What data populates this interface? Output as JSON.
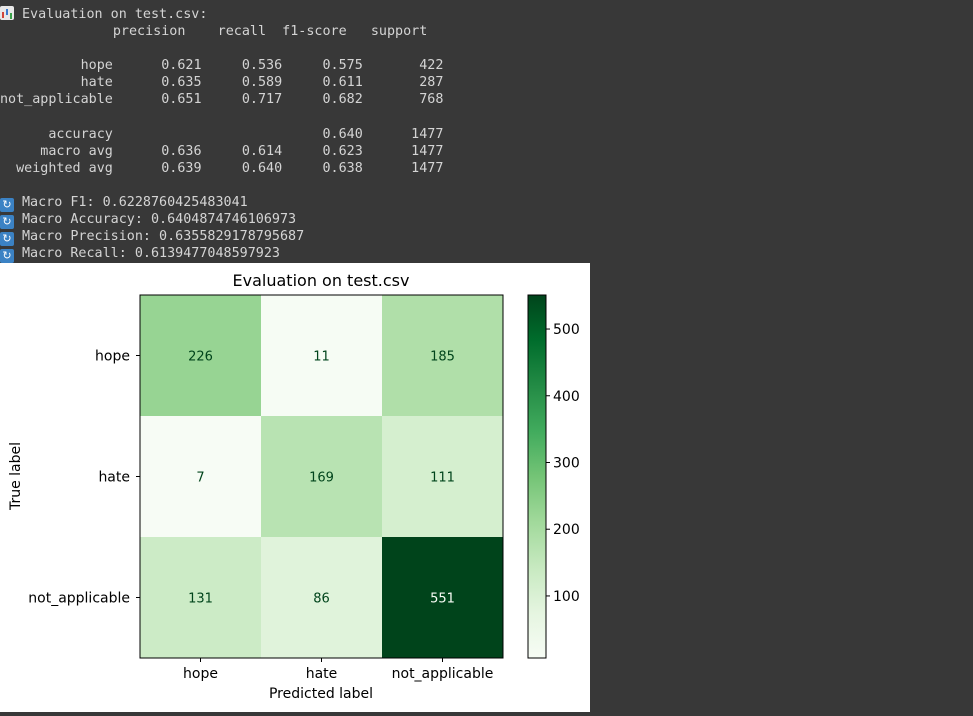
{
  "console": {
    "heading_icon": "bar-chart-icon",
    "heading": "Evaluation on test.csv:",
    "table_header": "              precision    recall  f1-score   support",
    "rows": [
      "",
      "          hope      0.621     0.536     0.575       422",
      "          hate      0.635     0.589     0.611       287",
      "not_applicable      0.651     0.717     0.682       768",
      "",
      "      accuracy                          0.640      1477",
      "     macro avg      0.636     0.614     0.623      1477",
      "  weighted avg      0.639     0.640     0.638      1477",
      ""
    ],
    "metrics_icon": "cycle-arrows-icon",
    "metrics": [
      "Macro F1: 0.6228760425483041",
      "Macro Accuracy: 0.6404874746106973",
      "Macro Precision: 0.6355829178795687",
      "Macro Recall: 0.6139477048597923"
    ]
  },
  "chart_data": {
    "type": "heatmap",
    "title": "Evaluation on test.csv",
    "xlabel": "Predicted label",
    "ylabel": "True label",
    "x_categories": [
      "hope",
      "hate",
      "not_applicable"
    ],
    "y_categories": [
      "hope",
      "hate",
      "not_applicable"
    ],
    "matrix": [
      [
        226,
        11,
        185
      ],
      [
        7,
        169,
        111
      ],
      [
        131,
        86,
        551
      ]
    ],
    "colormap": "Greens",
    "colorbar_ticks": [
      100,
      200,
      300,
      400,
      500
    ],
    "colorbar_range": [
      7,
      551
    ],
    "colors": {
      "low": "#f7fcf5",
      "high": "#00441b",
      "text_dark": "#00441b",
      "text_light": "#f7fcf5"
    }
  }
}
